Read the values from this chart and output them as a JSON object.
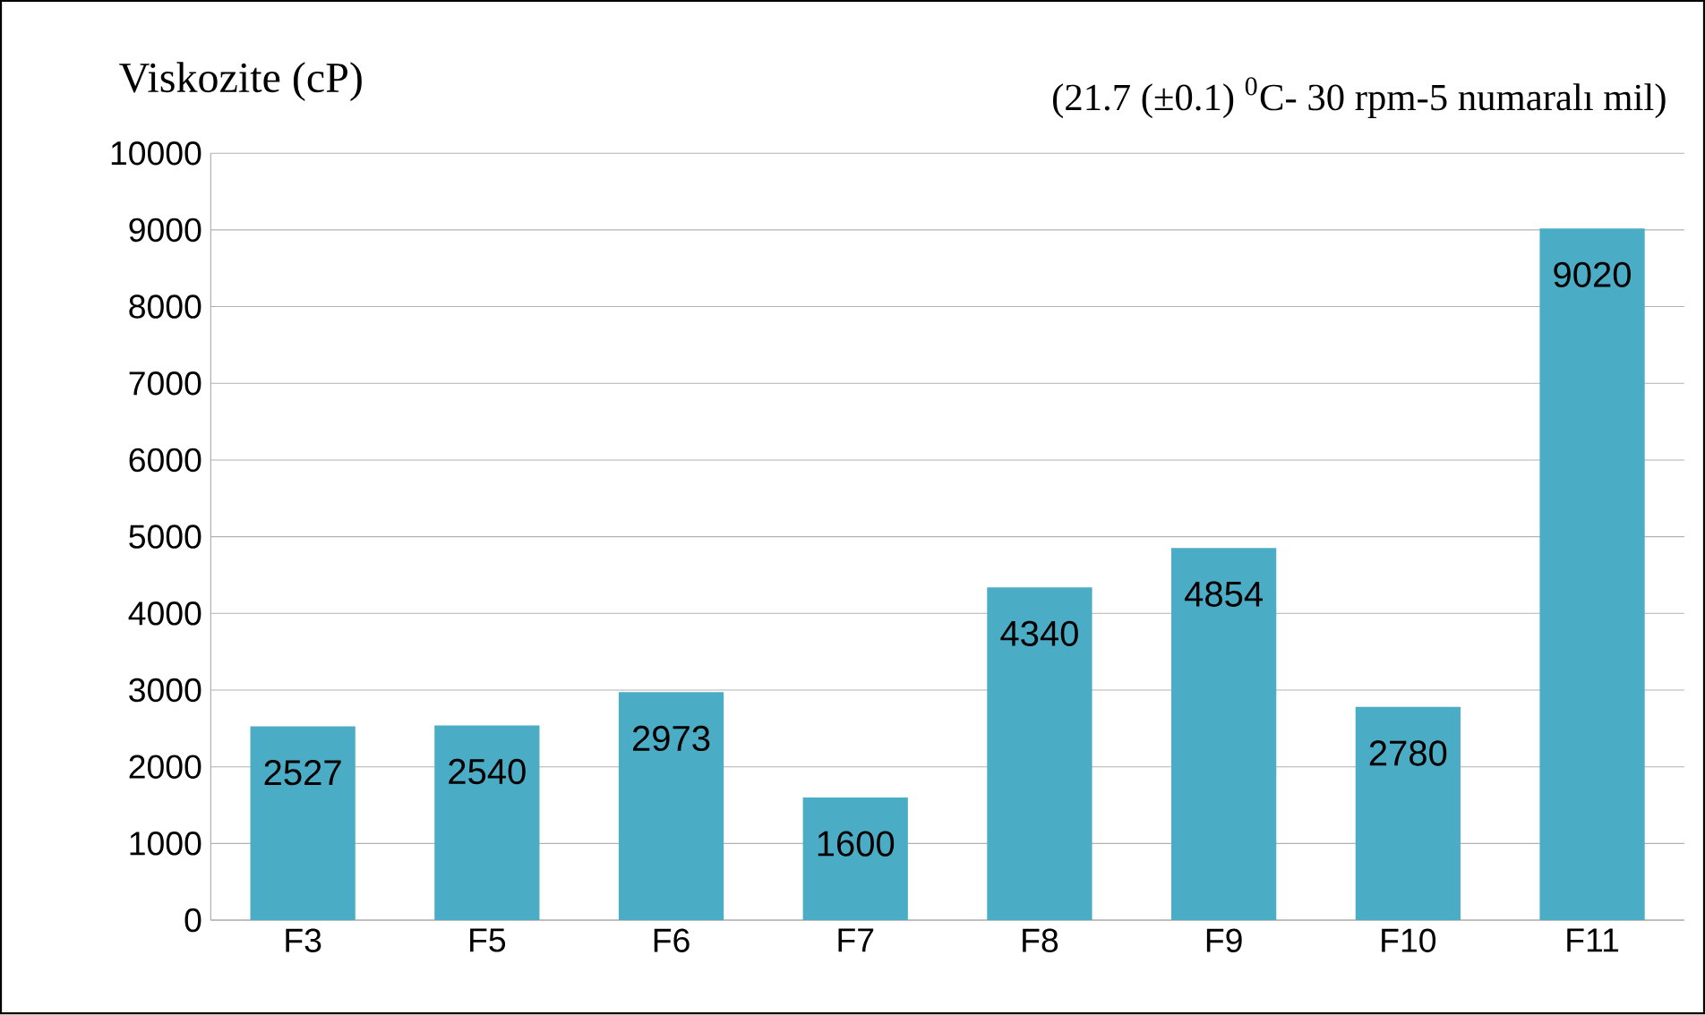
{
  "chart_data": {
    "type": "bar",
    "ylabel": "Viskozite (cP)",
    "subtitle": "(21.7 (±0.1) $^{0}$C- 30 rpm-5 numaralı mil)",
    "categories": [
      "F3",
      "F5",
      "F6",
      "F7",
      "F8",
      "F9",
      "F10",
      "F11"
    ],
    "values": [
      2527,
      2540,
      2973,
      1600,
      4340,
      4854,
      2780,
      9020
    ],
    "color": "#4bacc6",
    "data_labels": true,
    "grid": "y",
    "ylim": [
      0,
      10000
    ],
    "yticks": [
      0,
      1000,
      2000,
      3000,
      4000,
      5000,
      6000,
      7000,
      8000,
      9000,
      10000
    ]
  }
}
